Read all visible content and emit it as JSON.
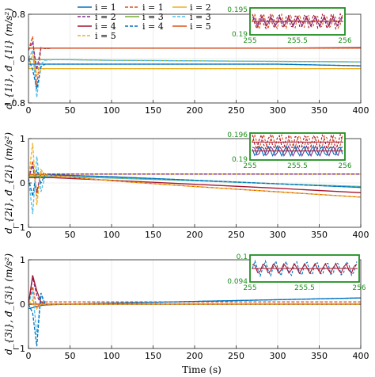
{
  "colors": {
    "blue": "#0072BD",
    "orange": "#D95319",
    "yellow": "#EDB120",
    "purple": "#7E2F8E",
    "green": "#77AC30",
    "cyan": "#4DBEEE",
    "red": "#A2142F",
    "inset_border": "#1f8f1f"
  },
  "legend": [
    {
      "label": "i = 1",
      "color": "blue",
      "dash": false
    },
    {
      "label": "i = 1",
      "color": "orange",
      "dash": true
    },
    {
      "label": "i = 2",
      "color": "yellow",
      "dash": false
    },
    {
      "label": "i = 2",
      "color": "purple",
      "dash": true
    },
    {
      "label": "i = 3",
      "color": "green",
      "dash": false
    },
    {
      "label": "i = 3",
      "color": "cyan",
      "dash": true
    },
    {
      "label": "i = 4",
      "color": "red",
      "dash": false
    },
    {
      "label": "i = 4",
      "color": "blue",
      "dash": true
    },
    {
      "label": "i = 5",
      "color": "orange",
      "dash": false
    },
    {
      "label": "i = 5",
      "color": "yellow",
      "dash": true
    }
  ],
  "chart_data": [
    {
      "type": "line",
      "ylabel": "d_{1i}, đ_{1i} (m/s²)",
      "xlim": [
        0,
        400
      ],
      "ylim": [
        -0.8,
        0.8
      ],
      "xticks": [
        0,
        50,
        100,
        150,
        200,
        250,
        300,
        350,
        400
      ],
      "xtick_labels": [
        "0",
        "50",
        "100",
        "150",
        "200",
        "250",
        "300",
        "350",
        "400"
      ],
      "yticks": [
        -0.8,
        0,
        0.8
      ],
      "ytick_labels": [
        "−0.8",
        "0",
        "0.8"
      ],
      "x": [
        0,
        5,
        10,
        15,
        20,
        30,
        50,
        100,
        200,
        300,
        400
      ],
      "series": [
        {
          "color": "blue",
          "dash": false,
          "values": [
            -0.1,
            -0.1,
            -0.1,
            -0.1,
            -0.1,
            -0.1,
            -0.1,
            -0.1,
            -0.1,
            -0.1,
            -0.13
          ]
        },
        {
          "color": "orange",
          "dash": true,
          "values": [
            0.15,
            0.4,
            -0.5,
            0.2,
            0.18,
            0.19,
            0.19,
            0.19,
            0.19,
            0.19,
            0.19
          ]
        },
        {
          "color": "yellow",
          "dash": false,
          "values": [
            -0.18,
            -0.18,
            -0.18,
            -0.18,
            -0.18,
            -0.18,
            -0.18,
            -0.18,
            -0.18,
            -0.18,
            -0.18
          ]
        },
        {
          "color": "purple",
          "dash": true,
          "values": [
            0.15,
            0.3,
            -0.2,
            0.2,
            0.18,
            0.19,
            0.19,
            0.19,
            0.19,
            0.19,
            0.19
          ]
        },
        {
          "color": "green",
          "dash": false,
          "values": [
            -0.02,
            -0.02,
            -0.02,
            -0.02,
            -0.02,
            -0.02,
            -0.02,
            -0.03,
            -0.04,
            -0.05,
            -0.06
          ]
        },
        {
          "color": "cyan",
          "dash": true,
          "values": [
            0.0,
            0.15,
            -0.7,
            -0.1,
            -0.03,
            -0.02,
            -0.02,
            -0.03,
            -0.04,
            -0.05,
            -0.06
          ]
        },
        {
          "color": "red",
          "dash": false,
          "values": [
            0.19,
            0.19,
            0.19,
            0.19,
            0.19,
            0.19,
            0.19,
            0.19,
            0.19,
            0.19,
            0.2
          ]
        },
        {
          "color": "blue",
          "dash": true,
          "values": [
            0.0,
            -0.2,
            -0.55,
            -0.15,
            -0.1,
            -0.1,
            -0.1,
            -0.1,
            -0.1,
            -0.1,
            -0.13
          ]
        },
        {
          "color": "orange",
          "dash": false,
          "values": [
            0.19,
            0.19,
            0.19,
            0.19,
            0.19,
            0.19,
            0.19,
            0.19,
            0.19,
            0.19,
            0.19
          ]
        },
        {
          "color": "yellow",
          "dash": true,
          "values": [
            -0.18,
            0.1,
            -0.3,
            -0.2,
            -0.18,
            -0.18,
            -0.18,
            -0.18,
            -0.18,
            -0.18,
            -0.18
          ]
        }
      ],
      "inset": {
        "xlim": [
          255,
          256
        ],
        "ylim": [
          0.19,
          0.195
        ],
        "xtick_labels": [
          "255",
          "255.5",
          "256"
        ],
        "ytick_labels": [
          "0.195",
          "0.19"
        ],
        "mean_levels": [
          0.1925
        ],
        "oscillating_series": [
          "orange",
          "purple",
          "red"
        ]
      }
    },
    {
      "type": "line",
      "ylabel": "d_{2i}, đ_{2i} (m/s²)",
      "xlim": [
        0,
        400
      ],
      "ylim": [
        -1,
        1
      ],
      "xticks": [
        0,
        50,
        100,
        150,
        200,
        250,
        300,
        350,
        400
      ],
      "xtick_labels": [
        "0",
        "50",
        "100",
        "150",
        "200",
        "250",
        "300",
        "350",
        "400"
      ],
      "yticks": [
        -1,
        0,
        1
      ],
      "ytick_labels": [
        "−1",
        "0",
        "1"
      ],
      "x": [
        0,
        5,
        10,
        15,
        20,
        30,
        50,
        100,
        200,
        300,
        400
      ],
      "series": [
        {
          "color": "blue",
          "dash": false,
          "values": [
            0.18,
            0.18,
            0.18,
            0.18,
            0.18,
            0.18,
            0.17,
            0.14,
            0.06,
            -0.02,
            -0.1
          ]
        },
        {
          "color": "orange",
          "dash": true,
          "values": [
            0.1,
            0.5,
            -0.3,
            0.25,
            0.2,
            0.2,
            0.2,
            0.2,
            0.2,
            0.2,
            0.2
          ]
        },
        {
          "color": "yellow",
          "dash": false,
          "values": [
            0.2,
            0.2,
            0.2,
            0.2,
            0.2,
            0.2,
            0.2,
            0.2,
            0.2,
            0.2,
            0.2
          ]
        },
        {
          "color": "purple",
          "dash": true,
          "values": [
            0.1,
            0.4,
            -0.2,
            0.22,
            0.2,
            0.2,
            0.2,
            0.2,
            0.2,
            0.2,
            0.2
          ]
        },
        {
          "color": "green",
          "dash": false,
          "values": [
            0.15,
            0.15,
            0.15,
            0.15,
            0.15,
            0.15,
            0.14,
            0.11,
            0.05,
            -0.02,
            -0.08
          ]
        },
        {
          "color": "cyan",
          "dash": true,
          "values": [
            0.1,
            -0.7,
            0.6,
            -0.2,
            0.15,
            0.15,
            0.14,
            0.11,
            0.05,
            -0.02,
            -0.08
          ]
        },
        {
          "color": "red",
          "dash": false,
          "values": [
            0.12,
            0.12,
            0.12,
            0.12,
            0.12,
            0.12,
            0.1,
            0.06,
            -0.03,
            -0.12,
            -0.22
          ]
        },
        {
          "color": "blue",
          "dash": true,
          "values": [
            0.1,
            -0.3,
            0.3,
            0.0,
            0.18,
            0.18,
            0.17,
            0.14,
            0.06,
            -0.02,
            -0.1
          ]
        },
        {
          "color": "orange",
          "dash": false,
          "values": [
            0.18,
            0.18,
            0.18,
            0.18,
            0.18,
            0.16,
            0.13,
            0.05,
            -0.08,
            -0.2,
            -0.32
          ]
        },
        {
          "color": "yellow",
          "dash": true,
          "values": [
            0.1,
            0.9,
            -0.5,
            0.3,
            0.18,
            0.16,
            0.13,
            0.05,
            -0.08,
            -0.2,
            -0.32
          ]
        }
      ],
      "inset": {
        "xlim": [
          255,
          256
        ],
        "ylim": [
          0.19,
          0.196
        ],
        "xtick_labels": [
          "255",
          "255.5",
          "256"
        ],
        "ytick_labels": [
          "0.196",
          "0.19"
        ],
        "mean_levels": [
          0.194,
          0.192
        ],
        "oscillating_series": [
          "orange",
          "purple",
          "red",
          "blue"
        ]
      }
    },
    {
      "type": "line",
      "ylabel": "d_{3i}, đ_{3i} (m/s²)",
      "xlim": [
        0,
        400
      ],
      "ylim": [
        -1,
        1
      ],
      "xticks": [
        0,
        50,
        100,
        150,
        200,
        250,
        300,
        350,
        400
      ],
      "xtick_labels": [
        "0",
        "50",
        "100",
        "150",
        "200",
        "250",
        "300",
        "350",
        "400"
      ],
      "yticks": [
        -1,
        0,
        1
      ],
      "ytick_labels": [
        "−1",
        "0",
        "1"
      ],
      "x": [
        0,
        5,
        10,
        15,
        20,
        30,
        50,
        100,
        200,
        300,
        400
      ],
      "series": [
        {
          "color": "blue",
          "dash": false,
          "values": [
            -0.1,
            -0.08,
            -0.05,
            -0.03,
            -0.02,
            -0.01,
            0.0,
            0.02,
            0.06,
            0.1,
            0.14
          ]
        },
        {
          "color": "orange",
          "dash": true,
          "values": [
            0.0,
            0.4,
            -0.1,
            0.05,
            0.05,
            0.05,
            0.05,
            0.05,
            0.05,
            0.05,
            0.05
          ]
        },
        {
          "color": "yellow",
          "dash": false,
          "values": [
            0.0,
            0.0,
            0.0,
            0.0,
            0.0,
            0.0,
            0.0,
            0.0,
            0.0,
            0.0,
            0.0
          ]
        },
        {
          "color": "purple",
          "dash": true,
          "values": [
            0.0,
            0.6,
            0.2,
            0.0,
            0.0,
            0.0,
            0.0,
            0.0,
            0.0,
            0.0,
            0.0
          ]
        },
        {
          "color": "green",
          "dash": false,
          "values": [
            0.0,
            0.0,
            0.0,
            0.0,
            0.0,
            0.0,
            0.0,
            0.0,
            0.0,
            0.0,
            0.0
          ]
        },
        {
          "color": "cyan",
          "dash": true,
          "values": [
            0.0,
            0.3,
            -0.7,
            0.2,
            0.0,
            0.0,
            0.0,
            0.0,
            0.0,
            0.0,
            0.0
          ]
        },
        {
          "color": "red",
          "dash": false,
          "values": [
            0.0,
            0.65,
            0.3,
            0.05,
            0.0,
            0.0,
            0.0,
            0.0,
            0.0,
            0.0,
            0.0
          ]
        },
        {
          "color": "blue",
          "dash": true,
          "values": [
            0.0,
            -0.2,
            -0.95,
            0.25,
            0.0,
            0.0,
            0.0,
            0.02,
            0.06,
            0.1,
            0.14
          ]
        },
        {
          "color": "orange",
          "dash": false,
          "values": [
            0.0,
            0.0,
            0.0,
            0.0,
            0.0,
            0.0,
            0.0,
            0.0,
            0.0,
            0.0,
            0.0
          ]
        },
        {
          "color": "yellow",
          "dash": true,
          "values": [
            0.0,
            0.1,
            -0.1,
            0.0,
            0.0,
            0.0,
            0.0,
            0.0,
            0.0,
            0.0,
            0.0
          ]
        }
      ],
      "inset": {
        "xlim": [
          255,
          256
        ],
        "ylim": [
          0.094,
          0.1
        ],
        "xtick_labels": [
          "255",
          "255.5",
          "256"
        ],
        "ytick_labels": [
          "0.1",
          "0.094"
        ],
        "mean_levels": [
          0.097
        ],
        "oscillating_series": [
          "blue",
          "red"
        ]
      }
    }
  ],
  "xlabel": "Time (s)"
}
